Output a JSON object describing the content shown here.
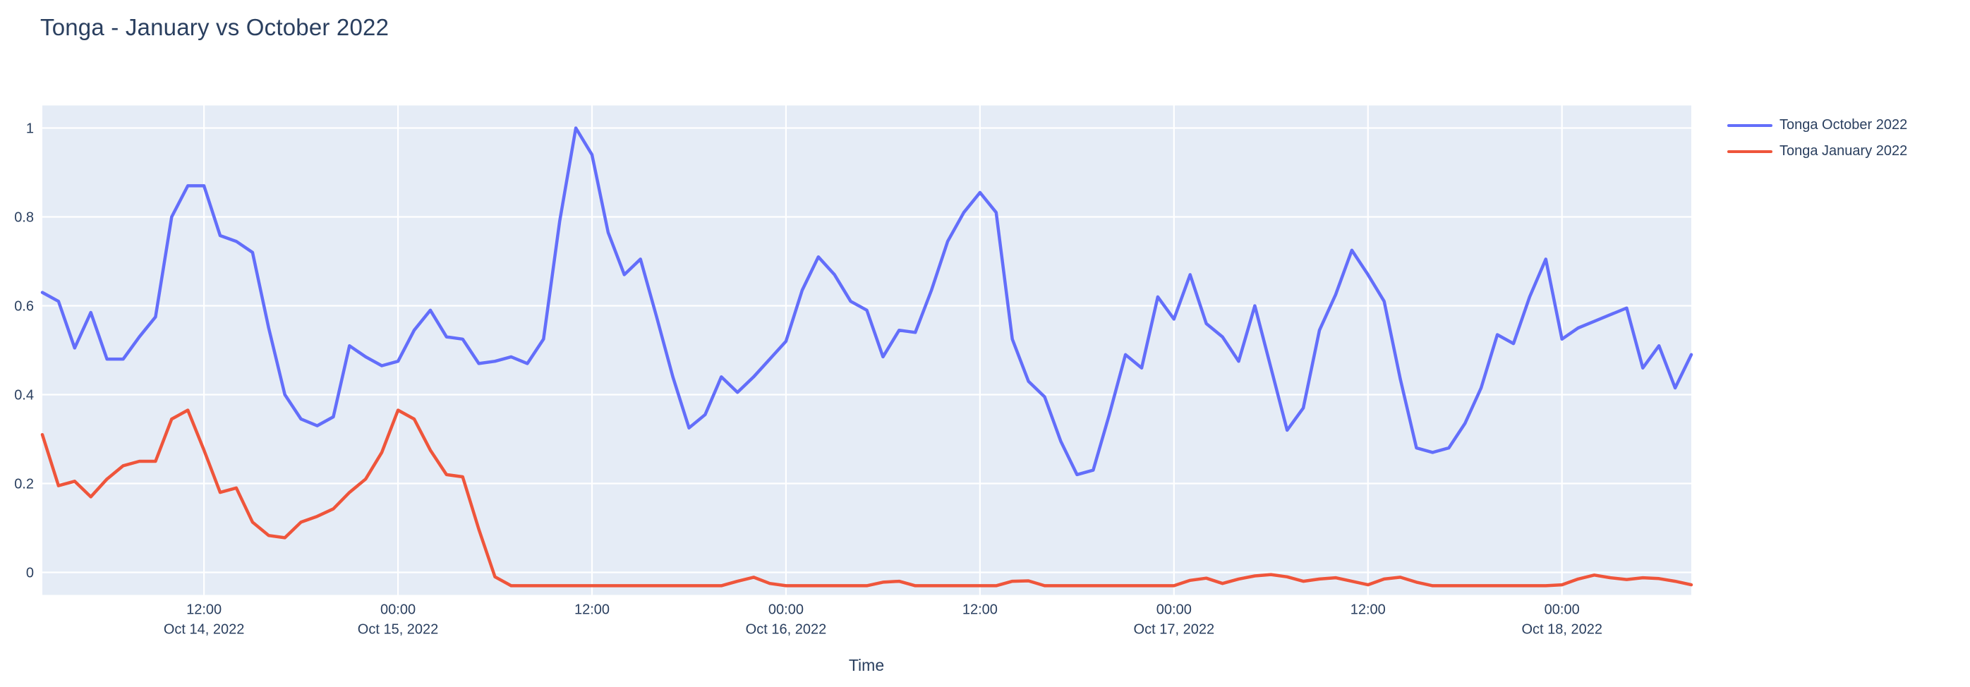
{
  "title": "Tonga - January vs October 2022",
  "text_color": "#2a3f5f",
  "chart_data": {
    "type": "line",
    "title": "Tonga - January vs October 2022",
    "xlabel": "Time",
    "ylabel": "",
    "plot_bg_color": "#E5ECF6",
    "grid": true,
    "grid_color": "#ffffff",
    "legend_position": "top-right",
    "x_start": "2022-10-14 02:00",
    "x_step_hours": 1,
    "n_points": 103,
    "ylim": [
      -0.0508,
      1.0508
    ],
    "yticks": [
      0,
      0.2,
      0.4,
      0.6,
      0.8,
      1
    ],
    "ytick_labels": [
      "0",
      "0.2",
      "0.4",
      "0.6",
      "0.8",
      "1"
    ],
    "xticks": [
      {
        "offset_hours": 10,
        "time": "12:00",
        "date": "Oct 14, 2022"
      },
      {
        "offset_hours": 22,
        "time": "00:00",
        "date": "Oct 15, 2022"
      },
      {
        "offset_hours": 34,
        "time": "12:00",
        "date": ""
      },
      {
        "offset_hours": 46,
        "time": "00:00",
        "date": "Oct 16, 2022"
      },
      {
        "offset_hours": 58,
        "time": "12:00",
        "date": ""
      },
      {
        "offset_hours": 70,
        "time": "00:00",
        "date": "Oct 17, 2022"
      },
      {
        "offset_hours": 82,
        "time": "12:00",
        "date": ""
      },
      {
        "offset_hours": 94,
        "time": "00:00",
        "date": "Oct 18, 2022"
      }
    ],
    "series": [
      {
        "name": "Tonga October 2022",
        "color": "#636EFA",
        "values": [
          0.63,
          0.61,
          0.505,
          0.585,
          0.48,
          0.48,
          0.53,
          0.575,
          0.8,
          0.87,
          0.87,
          0.758,
          0.745,
          0.72,
          0.55,
          0.4,
          0.345,
          0.33,
          0.35,
          0.51,
          0.485,
          0.465,
          0.475,
          0.545,
          0.59,
          0.53,
          0.525,
          0.47,
          0.475,
          0.485,
          0.47,
          0.525,
          0.79,
          1.0,
          0.94,
          0.765,
          0.67,
          0.705,
          0.575,
          0.44,
          0.325,
          0.355,
          0.44,
          0.405,
          0.44,
          0.48,
          0.52,
          0.635,
          0.71,
          0.67,
          0.61,
          0.59,
          0.485,
          0.545,
          0.54,
          0.635,
          0.745,
          0.81,
          0.855,
          0.81,
          0.525,
          0.43,
          0.395,
          0.295,
          0.22,
          0.23,
          0.355,
          0.49,
          0.46,
          0.62,
          0.57,
          0.67,
          0.56,
          0.53,
          0.475,
          0.6,
          0.46,
          0.32,
          0.37,
          0.545,
          0.625,
          0.725,
          0.67,
          0.61,
          0.435,
          0.28,
          0.27,
          0.28,
          0.335,
          0.415,
          0.535,
          0.515,
          0.62,
          0.705,
          0.525,
          0.55,
          0.565,
          0.58,
          0.595,
          0.46,
          0.51,
          0.415,
          0.49
        ]
      },
      {
        "name": "Tonga January 2022",
        "color": "#EF553B",
        "values": [
          0.31,
          0.195,
          0.205,
          0.17,
          0.21,
          0.24,
          0.25,
          0.25,
          0.345,
          0.365,
          0.275,
          0.18,
          0.19,
          0.113,
          0.083,
          0.078,
          0.113,
          0.126,
          0.143,
          0.18,
          0.21,
          0.27,
          0.365,
          0.345,
          0.275,
          0.22,
          0.215,
          0.097,
          -0.01,
          -0.03,
          -0.03,
          -0.03,
          -0.03,
          -0.03,
          -0.03,
          -0.03,
          -0.03,
          -0.03,
          -0.03,
          -0.03,
          -0.03,
          -0.03,
          -0.03,
          -0.02,
          -0.011,
          -0.025,
          -0.03,
          -0.03,
          -0.03,
          -0.03,
          -0.03,
          -0.03,
          -0.022,
          -0.02,
          -0.03,
          -0.03,
          -0.03,
          -0.03,
          -0.03,
          -0.03,
          -0.02,
          -0.019,
          -0.03,
          -0.03,
          -0.03,
          -0.03,
          -0.03,
          -0.03,
          -0.03,
          -0.03,
          -0.03,
          -0.018,
          -0.013,
          -0.025,
          -0.015,
          -0.008,
          -0.005,
          -0.01,
          -0.02,
          -0.015,
          -0.012,
          -0.02,
          -0.028,
          -0.015,
          -0.011,
          -0.022,
          -0.03,
          -0.03,
          -0.03,
          -0.03,
          -0.03,
          -0.03,
          -0.03,
          -0.03,
          -0.028,
          -0.015,
          -0.006,
          -0.012,
          -0.016,
          -0.012,
          -0.014,
          -0.02,
          -0.028
        ]
      }
    ]
  }
}
